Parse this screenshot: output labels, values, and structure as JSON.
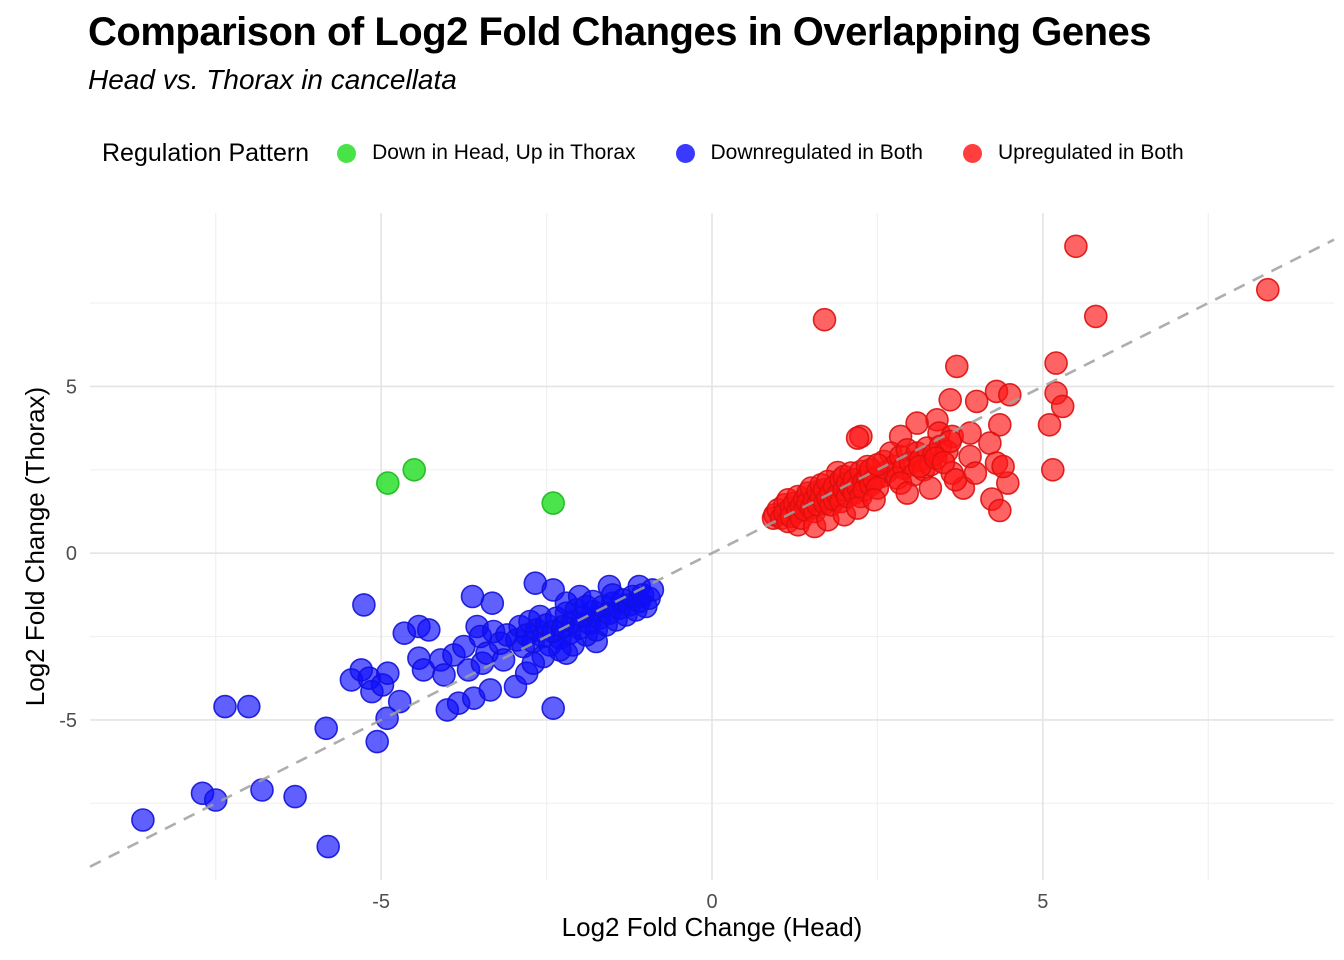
{
  "title": "Comparison of Log2 Fold Changes in Overlapping Genes",
  "subtitle": "Head vs. Thorax in cancellata",
  "legend": {
    "title": "Regulation Pattern"
  },
  "chart_data": {
    "type": "scatter",
    "title": "Comparison of Log2 Fold Changes in Overlapping Genes",
    "subtitle": "Head vs. Thorax in cancellata",
    "xlabel": "Log2 Fold Change (Head)",
    "ylabel": "Log2 Fold Change (Thorax)",
    "xlim": [
      -9.4,
      9.4
    ],
    "ylim": [
      -9.8,
      10.2
    ],
    "x_ticks": [
      -5,
      0,
      5
    ],
    "y_ticks": [
      -5,
      0,
      5
    ],
    "x_minor": [
      -7.5,
      -2.5,
      2.5,
      7.5
    ],
    "y_minor": [
      -7.5,
      -2.5,
      2.5,
      7.5
    ],
    "grid": true,
    "legend_position": "top",
    "tick_color": "#4d4d4d",
    "grid_major_color": "#e4e4e4",
    "grid_minor_color": "#f0f0f0",
    "reference_line": {
      "slope": 1,
      "intercept": 0,
      "line_style": "dashed",
      "color": "#a0a0a0"
    },
    "series": [
      {
        "name": "Down in Head, Up in Thorax",
        "color": "#1fdd1f",
        "stroke": "#1db81d",
        "fill_opacity": 0.8,
        "points": [
          [
            -4.9,
            2.1
          ],
          [
            -4.5,
            2.5
          ],
          [
            -2.4,
            1.5
          ]
        ]
      },
      {
        "name": "Downregulated in Both",
        "color": "#0d0dff",
        "stroke": "#1212d8",
        "fill_opacity": 0.66,
        "points": [
          [
            -8.6,
            -8.0
          ],
          [
            -7.7,
            -7.2
          ],
          [
            -7.5,
            -7.4
          ],
          [
            -6.8,
            -7.1
          ],
          [
            -6.3,
            -7.3
          ],
          [
            -5.8,
            -8.8
          ],
          [
            -7.36,
            -4.6
          ],
          [
            -7.0,
            -4.6
          ],
          [
            -5.83,
            -5.25
          ],
          [
            -5.06,
            -5.65
          ],
          [
            -4.91,
            -4.95
          ],
          [
            -4.72,
            -4.45
          ],
          [
            -5.45,
            -3.8
          ],
          [
            -5.3,
            -3.5
          ],
          [
            -5.18,
            -3.75
          ],
          [
            -5.14,
            -4.15
          ],
          [
            -4.98,
            -3.95
          ],
          [
            -4.9,
            -3.6
          ],
          [
            -5.26,
            -1.55
          ],
          [
            -4.65,
            -2.4
          ],
          [
            -4.43,
            -2.2
          ],
          [
            -4.28,
            -2.3
          ],
          [
            -4.43,
            -3.15
          ],
          [
            -4.36,
            -3.5
          ],
          [
            -4.1,
            -3.2
          ],
          [
            -4.05,
            -3.65
          ],
          [
            -3.9,
            -3.05
          ],
          [
            -3.75,
            -2.8
          ],
          [
            -3.68,
            -3.5
          ],
          [
            -3.47,
            -3.3
          ],
          [
            -4.0,
            -4.7
          ],
          [
            -3.83,
            -4.5
          ],
          [
            -3.6,
            -4.35
          ],
          [
            -3.35,
            -4.1
          ],
          [
            -2.97,
            -4.0
          ],
          [
            -2.4,
            -4.65
          ],
          [
            -3.62,
            -1.3
          ],
          [
            -3.32,
            -1.5
          ],
          [
            -3.55,
            -2.2
          ],
          [
            -3.5,
            -2.5
          ],
          [
            -3.3,
            -2.35
          ],
          [
            -3.2,
            -2.7
          ],
          [
            -3.1,
            -2.45
          ],
          [
            -3.4,
            -3.0
          ],
          [
            -3.15,
            -3.2
          ],
          [
            -2.2,
            -3.0
          ],
          [
            -1.75,
            -2.65
          ],
          [
            -2.8,
            -3.6
          ],
          [
            -2.95,
            -2.6
          ],
          [
            -2.9,
            -2.2
          ],
          [
            -2.85,
            -2.8
          ],
          [
            -2.8,
            -2.45
          ],
          [
            -2.75,
            -2.05
          ],
          [
            -2.7,
            -2.65
          ],
          [
            -2.67,
            -0.9
          ],
          [
            -2.65,
            -2.3
          ],
          [
            -2.6,
            -1.9
          ],
          [
            -2.55,
            -2.5
          ],
          [
            -2.5,
            -2.15
          ],
          [
            -2.45,
            -2.75
          ],
          [
            -2.4,
            -2.35
          ],
          [
            -2.4,
            -1.1
          ],
          [
            -2.35,
            -1.95
          ],
          [
            -2.3,
            -2.55
          ],
          [
            -2.25,
            -2.2
          ],
          [
            -2.2,
            -1.8
          ],
          [
            -2.2,
            -1.5
          ],
          [
            -2.15,
            -2.4
          ],
          [
            -2.1,
            -2.05
          ],
          [
            -2.05,
            -1.7
          ],
          [
            -2.0,
            -2.25
          ],
          [
            -2.0,
            -1.3
          ],
          [
            -1.95,
            -1.9
          ],
          [
            -1.9,
            -2.45
          ],
          [
            -1.85,
            -2.1
          ],
          [
            -1.8,
            -1.75
          ],
          [
            -1.8,
            -1.45
          ],
          [
            -1.75,
            -2.3
          ],
          [
            -1.7,
            -1.95
          ],
          [
            -1.65,
            -1.6
          ],
          [
            -1.6,
            -2.15
          ],
          [
            -1.55,
            -1.8
          ],
          [
            -1.55,
            -1.0
          ],
          [
            -1.5,
            -1.5
          ],
          [
            -1.45,
            -2.0
          ],
          [
            -1.4,
            -1.65
          ],
          [
            -1.35,
            -1.4
          ],
          [
            -1.3,
            -1.85
          ],
          [
            -1.25,
            -1.55
          ],
          [
            -1.2,
            -1.3
          ],
          [
            -1.15,
            -1.7
          ],
          [
            -1.1,
            -1.45
          ],
          [
            -1.1,
            -1.0
          ],
          [
            -1.05,
            -1.25
          ],
          [
            -1.0,
            -1.6
          ],
          [
            -0.95,
            -1.35
          ],
          [
            -0.9,
            -1.1
          ],
          [
            -1.5,
            -1.25
          ],
          [
            -1.9,
            -1.6
          ],
          [
            -2.1,
            -2.75
          ],
          [
            -2.3,
            -2.9
          ],
          [
            -2.55,
            -3.1
          ],
          [
            -2.7,
            -3.3
          ]
        ]
      },
      {
        "name": "Upregulated in Both",
        "color": "#ff1414",
        "stroke": "#db1010",
        "fill_opacity": 0.66,
        "points": [
          [
            5.5,
            9.2
          ],
          [
            8.4,
            7.9
          ],
          [
            1.7,
            7.0
          ],
          [
            5.8,
            7.1
          ],
          [
            3.7,
            5.6
          ],
          [
            5.2,
            5.7
          ],
          [
            4.3,
            4.85
          ],
          [
            4.5,
            4.75
          ],
          [
            5.2,
            4.8
          ],
          [
            3.6,
            4.6
          ],
          [
            4.0,
            4.55
          ],
          [
            5.3,
            4.4
          ],
          [
            5.1,
            3.85
          ],
          [
            4.35,
            3.85
          ],
          [
            3.4,
            4.0
          ],
          [
            3.1,
            3.9
          ],
          [
            2.25,
            3.5
          ],
          [
            2.85,
            3.5
          ],
          [
            3.43,
            3.6
          ],
          [
            3.63,
            3.5
          ],
          [
            3.9,
            3.6
          ],
          [
            4.2,
            3.3
          ],
          [
            3.9,
            2.9
          ],
          [
            4.3,
            2.7
          ],
          [
            4.47,
            2.1
          ],
          [
            3.8,
            1.95
          ],
          [
            5.15,
            2.5
          ],
          [
            4.4,
            2.6
          ],
          [
            3.63,
            2.4
          ],
          [
            4.23,
            1.62
          ],
          [
            4.35,
            1.28
          ],
          [
            2.2,
            3.45
          ],
          [
            2.55,
            2.3
          ],
          [
            2.6,
            2.75
          ],
          [
            2.65,
            2.45
          ],
          [
            2.7,
            3.0
          ],
          [
            2.75,
            2.6
          ],
          [
            2.8,
            2.25
          ],
          [
            2.85,
            2.9
          ],
          [
            2.9,
            2.55
          ],
          [
            2.95,
            3.1
          ],
          [
            3.0,
            2.7
          ],
          [
            3.05,
            2.35
          ],
          [
            3.1,
            3.0
          ],
          [
            3.15,
            2.8
          ],
          [
            3.2,
            2.5
          ],
          [
            3.25,
            3.15
          ],
          [
            3.3,
            2.65
          ],
          [
            3.35,
            2.95
          ],
          [
            3.45,
            3.2
          ],
          [
            3.55,
            3.05
          ],
          [
            3.6,
            3.35
          ],
          [
            3.14,
            2.6
          ],
          [
            3.38,
            2.85
          ],
          [
            3.5,
            2.72
          ],
          [
            3.68,
            2.2
          ],
          [
            3.98,
            2.4
          ],
          [
            2.85,
            2.1
          ],
          [
            1.9,
            2.42
          ],
          [
            2.95,
            1.8
          ],
          [
            3.3,
            1.95
          ],
          [
            0.93,
            1.05
          ],
          [
            0.95,
            1.15
          ],
          [
            1.0,
            1.3
          ],
          [
            1.05,
            1.05
          ],
          [
            1.1,
            1.45
          ],
          [
            1.1,
            1.2
          ],
          [
            1.15,
            1.6
          ],
          [
            1.15,
            0.95
          ],
          [
            1.2,
            1.35
          ],
          [
            1.2,
            1.1
          ],
          [
            1.25,
            1.5
          ],
          [
            1.3,
            1.25
          ],
          [
            1.3,
            1.7
          ],
          [
            1.3,
            0.85
          ],
          [
            1.35,
            1.4
          ],
          [
            1.35,
            1.05
          ],
          [
            1.4,
            1.6
          ],
          [
            1.4,
            1.3
          ],
          [
            1.45,
            1.8
          ],
          [
            1.45,
            1.5
          ],
          [
            1.5,
            1.35
          ],
          [
            1.5,
            1.95
          ],
          [
            1.55,
            1.6
          ],
          [
            1.55,
            1.25
          ],
          [
            1.55,
            0.8
          ],
          [
            1.6,
            1.85
          ],
          [
            1.6,
            1.45
          ],
          [
            1.65,
            1.7
          ],
          [
            1.65,
            2.05
          ],
          [
            1.7,
            1.5
          ],
          [
            1.7,
            1.9
          ],
          [
            1.75,
            1.65
          ],
          [
            1.75,
            2.15
          ],
          [
            1.75,
            1.0
          ],
          [
            1.8,
            1.8
          ],
          [
            1.8,
            1.45
          ],
          [
            1.85,
            2.0
          ],
          [
            1.85,
            1.6
          ],
          [
            1.9,
            1.75
          ],
          [
            1.95,
            2.2
          ],
          [
            1.95,
            1.55
          ],
          [
            2.0,
            1.9
          ],
          [
            2.0,
            2.3
          ],
          [
            2.0,
            1.15
          ],
          [
            2.05,
            1.7
          ],
          [
            2.05,
            2.1
          ],
          [
            2.1,
            1.95
          ],
          [
            2.1,
            2.4
          ],
          [
            2.15,
            1.8
          ],
          [
            2.15,
            2.2
          ],
          [
            2.2,
            2.0
          ],
          [
            2.25,
            2.45
          ],
          [
            2.25,
            1.7
          ],
          [
            2.3,
            2.15
          ],
          [
            2.3,
            1.9
          ],
          [
            2.35,
            2.3
          ],
          [
            2.35,
            2.6
          ],
          [
            2.4,
            2.05
          ],
          [
            2.4,
            2.5
          ],
          [
            2.45,
            2.2
          ],
          [
            2.5,
            2.65
          ],
          [
            2.5,
            1.95
          ],
          [
            2.2,
            1.35
          ],
          [
            2.45,
            1.6
          ]
        ]
      }
    ]
  }
}
